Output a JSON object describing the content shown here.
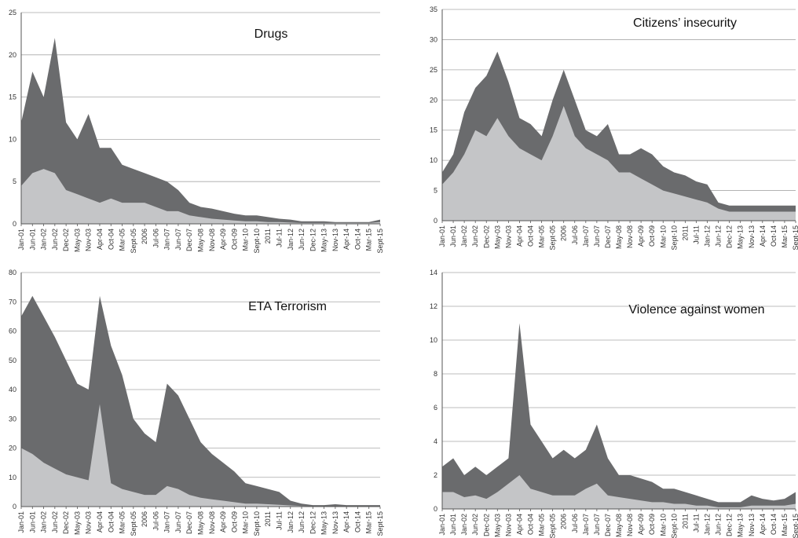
{
  "colors": {
    "light_series": "#c4c5c7",
    "dark_series": "#6a6b6d",
    "gridline": "#a8a8a8",
    "axis": "#555555"
  },
  "chart_data": [
    {
      "type": "area",
      "title": "Drugs",
      "ylim": [
        0,
        25
      ],
      "yticks": [
        "0",
        "5",
        "10",
        "15",
        "20",
        "25"
      ],
      "grid": true,
      "categories": [
        "Jan-01",
        "Jun-01",
        "Jan-02",
        "Jun-02",
        "Dec-02",
        "May-03",
        "Nov-03",
        "Apr-04",
        "Oct-04",
        "Mar-05",
        "Sept-05",
        "2006",
        "Jul-06",
        "Jan-07",
        "Jun-07",
        "Dec-07",
        "May-08",
        "Nov-08",
        "Apr-09",
        "Oct-09",
        "Mar-10",
        "Sept-10",
        "2011",
        "Jul-11",
        "Jan-12",
        "Jun-12",
        "Dec-12",
        "May-13",
        "Nov-13",
        "Apr-14",
        "Oct-14",
        "Mar-15",
        "Sept-15"
      ],
      "series": [
        {
          "values": [
            4.5,
            6.0,
            6.5,
            6.0,
            4.0,
            3.5,
            3.0,
            2.5,
            3.0,
            2.5,
            2.5,
            2.5,
            2.0,
            1.5,
            1.5,
            1.0,
            0.8,
            0.6,
            0.5,
            0.4,
            0.3,
            0.3,
            0.2,
            0.2,
            0.15,
            0.1,
            0.1,
            0.1,
            0.1,
            0.1,
            0.1,
            0.1,
            0.2
          ]
        },
        {
          "values": [
            12.0,
            18.0,
            15.0,
            22.0,
            12.0,
            10.0,
            13.0,
            9.0,
            9.0,
            7.0,
            6.5,
            6.0,
            5.5,
            5.0,
            4.0,
            2.5,
            2.0,
            1.8,
            1.5,
            1.2,
            1.0,
            1.0,
            0.8,
            0.6,
            0.5,
            0.3,
            0.3,
            0.3,
            0.2,
            0.2,
            0.2,
            0.2,
            0.5
          ]
        }
      ]
    },
    {
      "type": "area",
      "title": "Citizens’ insecurity",
      "ylim": [
        0,
        35
      ],
      "yticks": [
        "0",
        "5",
        "10",
        "15",
        "20",
        "25",
        "30",
        "35"
      ],
      "grid": true,
      "categories": [
        "Jan-01",
        "Jun-01",
        "Jan-02",
        "Jun-02",
        "Dec-02",
        "May-03",
        "Nov-03",
        "Apr-04",
        "Oct-04",
        "Mar-05",
        "Sept-05",
        "2006",
        "Jul-06",
        "Jan-07",
        "Jun-07",
        "Dec-07",
        "May-08",
        "Nov-08",
        "Apr-09",
        "Oct-09",
        "Mar-10",
        "Sept-10",
        "2011",
        "Jul-11",
        "Jan-12",
        "Jun-12",
        "Dec-12",
        "May-13",
        "Nov-13",
        "Apr-14",
        "Oct-14",
        "Mar-15",
        "Sept-15"
      ],
      "series": [
        {
          "values": [
            6.0,
            8.0,
            11.0,
            15.0,
            14.0,
            17.0,
            14.0,
            12.0,
            11.0,
            10.0,
            14.0,
            19.0,
            14.0,
            12.0,
            11.0,
            10.0,
            8.0,
            8.0,
            7.0,
            6.0,
            5.0,
            4.5,
            4.0,
            3.5,
            3.0,
            2.0,
            1.5,
            1.5,
            1.5,
            1.5,
            1.5,
            1.5,
            1.5
          ]
        },
        {
          "values": [
            8.0,
            11.0,
            18.0,
            22.0,
            24.0,
            28.0,
            23.0,
            17.0,
            16.0,
            14.0,
            20.0,
            25.0,
            20.0,
            15.0,
            14.0,
            16.0,
            11.0,
            11.0,
            12.0,
            11.0,
            9.0,
            8.0,
            7.5,
            6.5,
            6.0,
            3.0,
            2.5,
            2.5,
            2.5,
            2.5,
            2.5,
            2.5,
            2.5
          ]
        }
      ]
    },
    {
      "type": "area",
      "title": "ETA Terrorism",
      "ylim": [
        0,
        80
      ],
      "yticks": [
        "0",
        "10",
        "20",
        "30",
        "40",
        "50",
        "60",
        "70",
        "80"
      ],
      "grid": true,
      "categories": [
        "Jan-01",
        "Jun-01",
        "Jan-02",
        "Jun-02",
        "Dec-02",
        "May-03",
        "Nov-03",
        "Apr-04",
        "Oct-04",
        "Mar-05",
        "Sept-05",
        "2006",
        "Jul-06",
        "Jan-07",
        "Jun-07",
        "Dec-07",
        "May-08",
        "Nov-08",
        "Apr-09",
        "Oct-09",
        "Mar-10",
        "Sept-10",
        "2011",
        "Jul-11",
        "Jan-12",
        "Jun-12",
        "Dec-12",
        "May-13",
        "Nov-13",
        "Apr-14",
        "Oct-14",
        "Mar-15",
        "Sept-15"
      ],
      "series": [
        {
          "values": [
            20.0,
            18.0,
            15.0,
            13.0,
            11.0,
            10.0,
            9.0,
            35.0,
            8.0,
            6.0,
            5.0,
            4.0,
            4.0,
            7.0,
            6.0,
            4.0,
            3.0,
            2.5,
            2.0,
            1.5,
            1.0,
            1.0,
            0.8,
            0.6,
            0.4,
            0.2,
            0.1,
            0.1,
            0.1,
            0.1,
            0.1,
            0.1,
            0.1
          ]
        },
        {
          "values": [
            65.0,
            72.0,
            65.0,
            58.0,
            50.0,
            42.0,
            40.0,
            72.0,
            55.0,
            45.0,
            30.0,
            25.0,
            22.0,
            42.0,
            38.0,
            30.0,
            22.0,
            18.0,
            15.0,
            12.0,
            8.0,
            7.0,
            6.0,
            5.0,
            2.0,
            1.0,
            0.5,
            0.5,
            0.8,
            0.5,
            0.5,
            0.5,
            0.5
          ]
        }
      ]
    },
    {
      "type": "area",
      "title": "Violence against women",
      "ylim": [
        0,
        14
      ],
      "yticks": [
        "0",
        "2",
        "4",
        "6",
        "8",
        "10",
        "12",
        "14"
      ],
      "grid": true,
      "categories": [
        "Jan-01",
        "Jun-01",
        "Jan-02",
        "Jun-02",
        "Dec-02",
        "May-03",
        "Nov-03",
        "Apr-04",
        "Oct-04",
        "Mar-05",
        "Sept-05",
        "2006",
        "Jul-06",
        "Jan-07",
        "Jun-07",
        "Dec-07",
        "May-08",
        "Nov-08",
        "Apr-09",
        "Oct-09",
        "Mar-10",
        "Sept-10",
        "2011",
        "Jul-11",
        "Jan-12",
        "Jun-12",
        "Dec-12",
        "May-13",
        "Nov-13",
        "Apr-14",
        "Oct-14",
        "Mar-15",
        "Sept-15"
      ],
      "series": [
        {
          "values": [
            1.0,
            1.0,
            0.7,
            0.8,
            0.6,
            1.0,
            1.5,
            2.0,
            1.2,
            1.0,
            0.8,
            0.8,
            0.8,
            1.2,
            1.5,
            0.8,
            0.7,
            0.6,
            0.5,
            0.4,
            0.4,
            0.3,
            0.3,
            0.2,
            0.2,
            0.1,
            0.1,
            0.1,
            0.2,
            0.2,
            0.2,
            0.2,
            0.3
          ]
        },
        {
          "values": [
            2.5,
            3.0,
            2.0,
            2.5,
            2.0,
            2.5,
            3.0,
            11.0,
            5.0,
            4.0,
            3.0,
            3.5,
            3.0,
            3.5,
            5.0,
            3.0,
            2.0,
            2.0,
            1.8,
            1.6,
            1.2,
            1.2,
            1.0,
            0.8,
            0.6,
            0.4,
            0.4,
            0.4,
            0.8,
            0.6,
            0.5,
            0.6,
            1.0
          ]
        }
      ]
    }
  ]
}
